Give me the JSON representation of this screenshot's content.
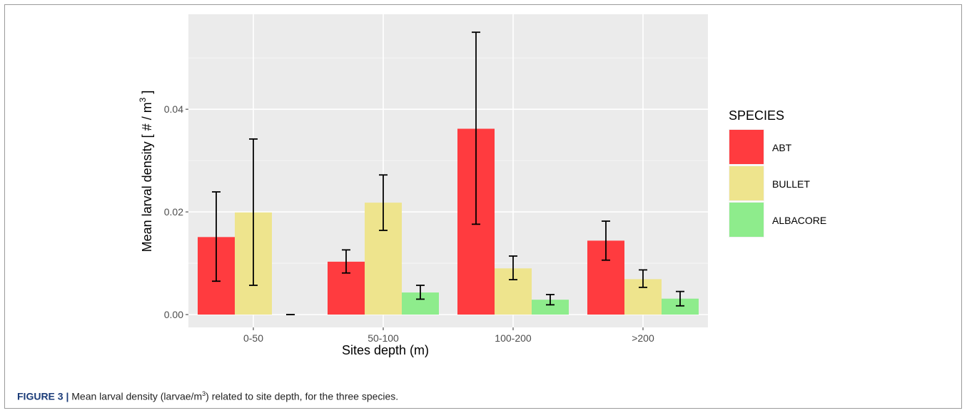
{
  "chart_data": {
    "type": "bar",
    "xlabel": "Sites depth (m)",
    "ylabel_prefix": "Mean larval density [ # / m",
    "ylabel_exp": "3",
    "ylabel_suffix": " ]",
    "categories": [
      "0-50",
      "50-100",
      "100-200",
      ">200"
    ],
    "ylim": [
      -0.0025,
      0.0585
    ],
    "yticks": [
      0.0,
      0.02,
      0.04
    ],
    "ytick_labels": [
      "0.00",
      "0.02",
      "0.04"
    ],
    "y_minor_ticks": [
      0.01,
      0.03,
      0.05
    ],
    "grid": true,
    "legend_title": "SPECIES",
    "legend_position": "right",
    "series": [
      {
        "name": "ABT",
        "color": "#ff3b3f",
        "values": [
          0.0151,
          0.0103,
          0.0362,
          0.0144
        ],
        "err_low": [
          0.0065,
          0.0081,
          0.0176,
          0.0106
        ],
        "err_high": [
          0.0239,
          0.0126,
          0.055,
          0.0182
        ]
      },
      {
        "name": "BULLET",
        "color": "#eee48d",
        "values": [
          0.0199,
          0.0218,
          0.009,
          0.0069
        ],
        "err_low": [
          0.0057,
          0.0164,
          0.0068,
          0.0053
        ],
        "err_high": [
          0.0342,
          0.0272,
          0.0114,
          0.0087
        ]
      },
      {
        "name": "ALBACORE",
        "color": "#8eec8c",
        "values": [
          0.0,
          0.0043,
          0.0029,
          0.0031
        ],
        "err_low": [
          0.0,
          0.003,
          0.0019,
          0.0017
        ],
        "err_high": [
          0.0,
          0.0057,
          0.0039,
          0.0045
        ]
      }
    ]
  },
  "caption": {
    "label": "FIGURE 3 |",
    "text_before": " Mean larval density (larvae/m",
    "sup": "3",
    "text_after": ") related to site depth, for the three species."
  }
}
